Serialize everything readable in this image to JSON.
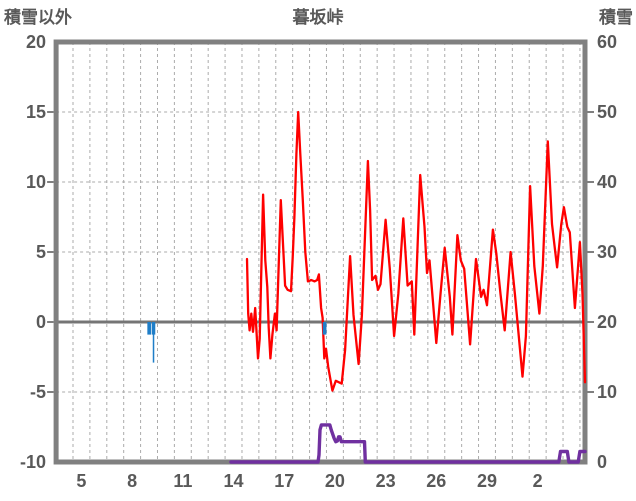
{
  "header": {
    "left_axis_title": "積雪以外",
    "chart_title": "暮坂峠",
    "right_axis_title": "積雪"
  },
  "colors": {
    "temperature_line": "#ff0000",
    "snow_depth_line": "#7030a0",
    "precipitation_bar": "#1f7ec8",
    "frame": "#808080",
    "zero_line": "#757575",
    "gridline": "#ababab",
    "label_text": "#595959",
    "background": "#ffffff"
  },
  "chart_data": {
    "type": "line",
    "title": "暮坂峠",
    "left_axis_label": "積雪以外",
    "right_axis_label": "積雪",
    "grid": true,
    "legend": "none",
    "x_axis": {
      "note": "day of month, continuous; gridline per day",
      "domain": [
        4.0,
        35.3
      ],
      "tick_labels": [
        "5",
        "8",
        "11",
        "14",
        "17",
        "20",
        "23",
        "26",
        "29",
        "2"
      ],
      "tick_label_positions": [
        5.5,
        8.5,
        11.5,
        14.5,
        17.5,
        20.5,
        23.5,
        26.5,
        29.5,
        32.5
      ]
    },
    "y_left": {
      "range": [
        -10,
        20
      ],
      "ticks": [
        20,
        15,
        10,
        5,
        0,
        -5,
        -10
      ],
      "gridline_values": [
        15,
        10,
        5,
        -5
      ],
      "zero_line": 0
    },
    "y_right": {
      "range": [
        0,
        60
      ],
      "ticks": [
        60,
        50,
        40,
        30,
        20,
        10,
        0
      ]
    },
    "series": [
      {
        "name": "temperature-red-line",
        "type": "line",
        "axis": "left",
        "color": "#ff0000",
        "points": [
          [
            15.3,
            4.5
          ],
          [
            15.37,
            0.6
          ],
          [
            15.45,
            -0.6
          ],
          [
            15.55,
            0.6
          ],
          [
            15.65,
            -0.7
          ],
          [
            15.78,
            1.0
          ],
          [
            15.95,
            -2.6
          ],
          [
            16.05,
            -1.2
          ],
          [
            16.25,
            9.1
          ],
          [
            16.38,
            4.4
          ],
          [
            16.5,
            2.5
          ],
          [
            16.58,
            -0.4
          ],
          [
            16.68,
            -2.6
          ],
          [
            16.8,
            -0.9
          ],
          [
            16.95,
            0.6
          ],
          [
            17.05,
            -0.6
          ],
          [
            17.3,
            8.7
          ],
          [
            17.55,
            2.6
          ],
          [
            17.7,
            2.3
          ],
          [
            17.9,
            2.2
          ],
          [
            18.0,
            4.6
          ],
          [
            18.1,
            7.5
          ],
          [
            18.22,
            12.0
          ],
          [
            18.33,
            15.0
          ],
          [
            18.45,
            12.0
          ],
          [
            18.6,
            8.7
          ],
          [
            18.75,
            5.0
          ],
          [
            18.9,
            2.9
          ],
          [
            19.1,
            3.0
          ],
          [
            19.3,
            2.9
          ],
          [
            19.45,
            3.0
          ],
          [
            19.55,
            3.4
          ],
          [
            19.68,
            1.0
          ],
          [
            19.77,
            0.3
          ],
          [
            19.87,
            -2.6
          ],
          [
            19.97,
            -1.9
          ],
          [
            20.1,
            -3.2
          ],
          [
            20.35,
            -4.9
          ],
          [
            20.55,
            -4.2
          ],
          [
            20.9,
            -4.4
          ],
          [
            21.1,
            -2.0
          ],
          [
            21.4,
            4.7
          ],
          [
            21.6,
            0.5
          ],
          [
            21.9,
            -3.0
          ],
          [
            22.1,
            0.5
          ],
          [
            22.45,
            11.5
          ],
          [
            22.58,
            8.0
          ],
          [
            22.7,
            3.0
          ],
          [
            22.9,
            3.3
          ],
          [
            23.05,
            2.3
          ],
          [
            23.2,
            2.7
          ],
          [
            23.5,
            7.3
          ],
          [
            23.75,
            3.8
          ],
          [
            24.0,
            -1.0
          ],
          [
            24.25,
            2.0
          ],
          [
            24.55,
            7.4
          ],
          [
            24.8,
            2.6
          ],
          [
            25.05,
            2.9
          ],
          [
            25.2,
            -0.9
          ],
          [
            25.55,
            10.5
          ],
          [
            25.8,
            6.8
          ],
          [
            25.95,
            3.5
          ],
          [
            26.1,
            4.4
          ],
          [
            26.3,
            1.5
          ],
          [
            26.5,
            -1.5
          ],
          [
            26.75,
            2.0
          ],
          [
            27.0,
            5.3
          ],
          [
            27.3,
            1.8
          ],
          [
            27.45,
            -0.9
          ],
          [
            27.75,
            6.2
          ],
          [
            27.95,
            4.4
          ],
          [
            28.15,
            3.8
          ],
          [
            28.5,
            -1.6
          ],
          [
            28.85,
            4.5
          ],
          [
            29.15,
            1.8
          ],
          [
            29.3,
            2.3
          ],
          [
            29.5,
            1.2
          ],
          [
            29.85,
            6.6
          ],
          [
            30.05,
            4.9
          ],
          [
            30.3,
            2.0
          ],
          [
            30.55,
            -0.6
          ],
          [
            30.9,
            5.0
          ],
          [
            31.15,
            2.0
          ],
          [
            31.6,
            -3.9
          ],
          [
            31.8,
            -1.0
          ],
          [
            32.05,
            9.7
          ],
          [
            32.3,
            4.0
          ],
          [
            32.6,
            0.6
          ],
          [
            32.8,
            4.0
          ],
          [
            33.1,
            12.9
          ],
          [
            33.35,
            7.0
          ],
          [
            33.5,
            5.4
          ],
          [
            33.65,
            3.9
          ],
          [
            33.9,
            7.0
          ],
          [
            34.05,
            8.2
          ],
          [
            34.25,
            6.8
          ],
          [
            34.4,
            6.4
          ],
          [
            34.7,
            1.0
          ],
          [
            35.0,
            5.7
          ],
          [
            35.15,
            2.0
          ],
          [
            35.3,
            -4.3
          ]
        ]
      },
      {
        "name": "precipitation-blue-bars",
        "type": "bar",
        "axis": "left",
        "color": "#1f7ec8",
        "bars": [
          [
            9.4,
            9.62,
            -0.9
          ],
          [
            9.66,
            9.87,
            -0.9
          ],
          [
            9.72,
            9.81,
            -2.9
          ],
          [
            19.78,
            20.0,
            -0.9
          ]
        ]
      },
      {
        "name": "snow-depth-purple-line",
        "type": "line",
        "axis": "right",
        "color": "#7030a0",
        "points": [
          [
            14.35,
            0
          ],
          [
            19.5,
            0
          ],
          [
            19.56,
            1.0
          ],
          [
            19.62,
            4.6
          ],
          [
            19.7,
            5.3
          ],
          [
            20.2,
            5.3
          ],
          [
            20.28,
            4.6
          ],
          [
            20.45,
            3.4
          ],
          [
            20.55,
            2.9
          ],
          [
            20.65,
            3.0
          ],
          [
            20.72,
            3.6
          ],
          [
            20.8,
            3.6
          ],
          [
            20.88,
            2.9
          ],
          [
            22.25,
            2.9
          ],
          [
            22.3,
            0
          ],
          [
            33.75,
            0
          ],
          [
            33.85,
            1.5
          ],
          [
            34.25,
            1.5
          ],
          [
            34.35,
            0
          ],
          [
            34.9,
            0
          ],
          [
            35.0,
            1.5
          ],
          [
            35.3,
            1.5
          ]
        ]
      }
    ]
  }
}
